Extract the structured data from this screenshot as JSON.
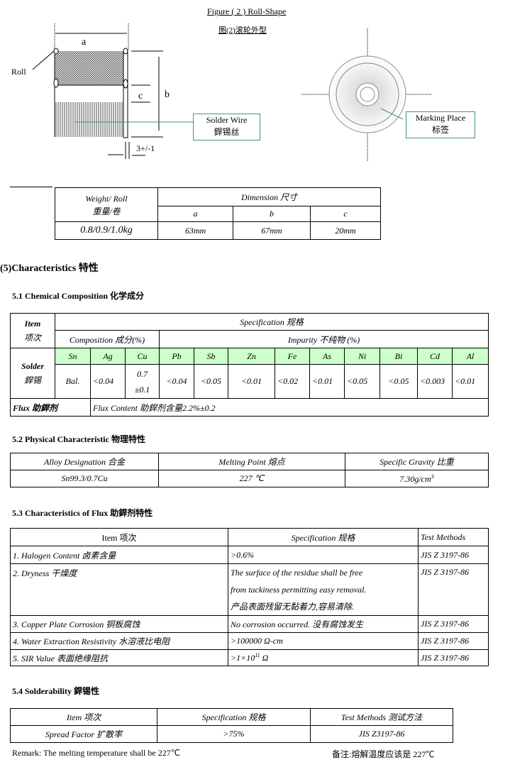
{
  "figure": {
    "title_en": "Figure ( 2 ) Roll-Shape",
    "title_cn": "图(2)滚轮外型",
    "label_a": "a",
    "label_b": "b",
    "label_c": "c",
    "roll": "Roll",
    "solder_wire_en": "Solder Wire",
    "solder_wire_cn": "銲锡丝",
    "gap": "3+/-1",
    "marking_en": "Marking Place",
    "marking_cn": "标签"
  },
  "weight_table": {
    "weight_label": "Weight/ Roll",
    "weight_cn": "重量/卷",
    "dimension": "Dimension 尺寸",
    "cols": [
      "a",
      "b",
      "c"
    ],
    "weight_value": "0.8/0.9/1.0kg",
    "values": [
      "63mm",
      "67mm",
      "20mm"
    ]
  },
  "section5": "(5)Characteristics 特性",
  "chem": {
    "heading": "5.1 Chemical Composition 化学成分",
    "item": "Item",
    "item_cn": "项次",
    "spec": "Specification 规格",
    "composition": "Composition 成分(%)",
    "impurity": "Impurity 不纯物 (%)",
    "solder": "Solder",
    "solder_cn": "銲锡",
    "elements": [
      "Sn",
      "Ag",
      "Cu",
      "Pb",
      "Sb",
      "Zn",
      "Fe",
      "As",
      "Ni",
      "Bi",
      "Cd",
      "Al"
    ],
    "values": [
      "Bal.",
      "<0.04",
      "0.7",
      "<0.04",
      "<0.05",
      "<0.01",
      "<0.02",
      "<0.01",
      "<0.05",
      "<0.05",
      "<0.003",
      "<0.01"
    ],
    "cu_tol": "±0.1",
    "flux": "Flux 助銲剂",
    "flux_content": "Flux Content 助銲剂含量2.2%±0.2"
  },
  "phys": {
    "heading": "5.2 Physical Characteristic 物理特性",
    "headers": [
      "Alloy Designation 合金",
      "Melting Point 熔点",
      "Specific Gravity 比重"
    ],
    "values": [
      "Sn99.3/0.7Cu",
      "227 ℃",
      "7.30g/cm"
    ],
    "sup": "3"
  },
  "fluxchar": {
    "heading": "5.3 Characteristics of Flux 助銲剂特性",
    "headers": [
      "Item 项次",
      "Specification 规格",
      "Test Methods"
    ],
    "rows": [
      {
        "item": "1. Halogen Content 卤素含量",
        "spec": [
          ">0.6%"
        ],
        "test": "JIS Z 3197-86"
      },
      {
        "item": "2. Dryness 干燥度",
        "spec": [
          "The surface of the residue shall be free",
          "from tackiness permitting easy removal.",
          "产品表面残留无黏着力,容易清除."
        ],
        "test": "JIS Z 3197-86"
      },
      {
        "item": "3. Copper Plate Corrosion 铜板腐蚀",
        "spec": [
          "No corrosion occurred. 没有腐蚀发生"
        ],
        "test": "JIS Z 3197-86"
      },
      {
        "item": "4. Water Extraction Resistivity 水溶液比电阻",
        "spec": [
          ">100000 Ω-cm"
        ],
        "test": "JIS Z 3197-86"
      },
      {
        "item": "5. SIR Value 表面绝缘阻抗",
        "spec": [
          ">1×10"
        ],
        "sup": "11",
        "unit": " Ω",
        "test": "JIS Z 3197-86"
      }
    ]
  },
  "solderability": {
    "heading": "5.4 Solderability 銲锡性",
    "headers": [
      "Item 项次",
      "Specification 规格",
      "Test Methods 测试方法"
    ],
    "values": [
      "Spread Factor 扩散率",
      ">75%",
      "JIS Z3197-86"
    ]
  },
  "remark_en": "Remark: The melting temperature shall be 227℃",
  "remark_cn": "备注:熔解温度应该是 227℃"
}
